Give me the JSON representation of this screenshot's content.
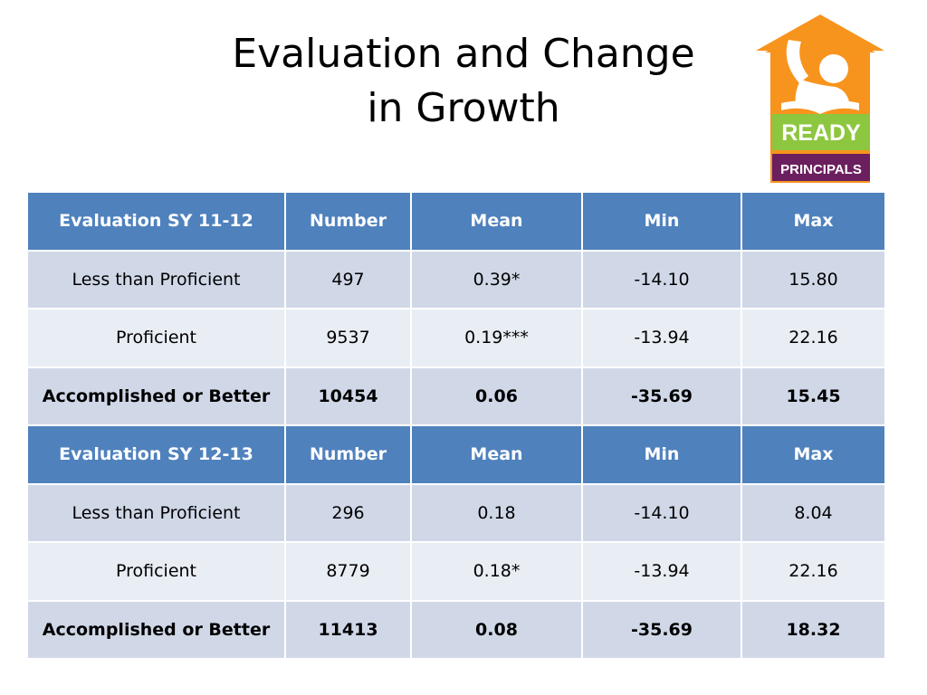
{
  "slide": {
    "title_line1": "Evaluation and Change",
    "title_line2": "in Growth"
  },
  "logo": {
    "line1": "READY",
    "line2": "PRINCIPALS"
  },
  "table": {
    "sections": [
      {
        "header": [
          "Evaluation SY 11-12",
          "Number",
          "Mean",
          "Min",
          "Max"
        ],
        "rows": [
          [
            "Less than Proficient",
            "497",
            "0.39*",
            "-14.10",
            "15.80"
          ],
          [
            "Proficient",
            "9537",
            "0.19***",
            "-13.94",
            "22.16"
          ],
          [
            "Accomplished or Better",
            "10454",
            "0.06",
            "-35.69",
            "15.45"
          ]
        ]
      },
      {
        "header": [
          "Evaluation SY 12-13",
          "Number",
          "Mean",
          "Min",
          "Max"
        ],
        "rows": [
          [
            "Less than Proficient",
            "296",
            "0.18",
            "-14.10",
            "8.04"
          ],
          [
            "Proficient",
            "8779",
            "0.18*",
            "-13.94",
            "22.16"
          ],
          [
            "Accomplished or Better",
            "11413",
            "0.08",
            "-35.69",
            "18.32"
          ]
        ]
      }
    ]
  }
}
